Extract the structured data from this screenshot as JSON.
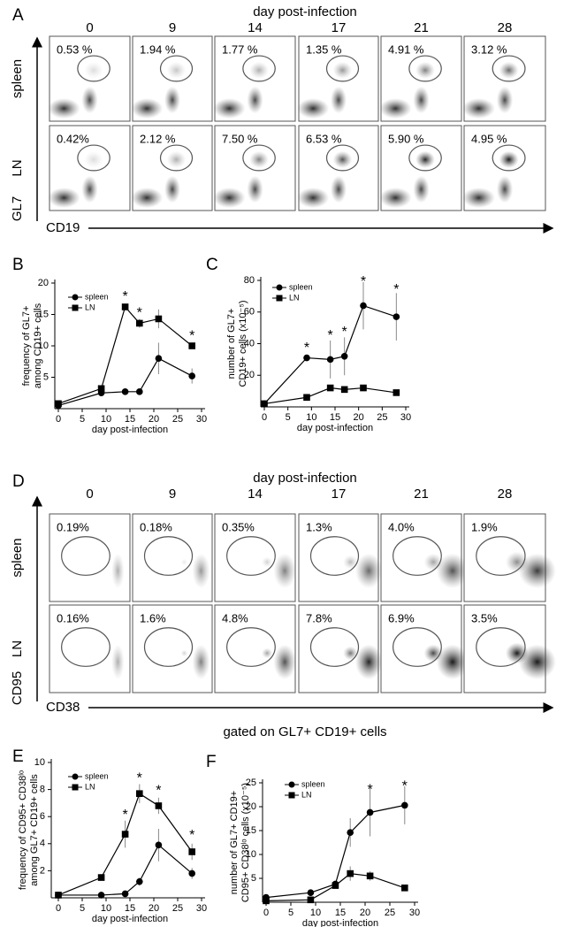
{
  "flow_A": {
    "panel": "A",
    "title": "day post-infection",
    "days": [
      "0",
      "9",
      "14",
      "17",
      "21",
      "28"
    ],
    "rows": [
      {
        "name": "spleen",
        "percents": [
          "0.53 %",
          "1.94 %",
          "1.77 %",
          "1.35 %",
          "4.91 %",
          "3.12 %"
        ]
      },
      {
        "name": "LN",
        "percents": [
          "0.42%",
          "2.12 %",
          "7.50 %",
          "6.53 %",
          "5.90 %",
          "4.95 %"
        ]
      }
    ],
    "y_axis": "GL7",
    "x_axis": "CD19"
  },
  "flow_D": {
    "panel": "D",
    "title": "day post-infection",
    "days": [
      "0",
      "9",
      "14",
      "17",
      "21",
      "28"
    ],
    "rows": [
      {
        "name": "spleen",
        "percents": [
          "0.19%",
          "0.18%",
          "0.35%",
          "1.3%",
          "4.0%",
          "1.9%"
        ]
      },
      {
        "name": "LN",
        "percents": [
          "0.16%",
          "1.6%",
          "4.8%",
          "7.8%",
          "6.9%",
          "3.5%"
        ]
      }
    ],
    "y_axis": "CD95",
    "x_axis": "CD38",
    "note": "gated on GL7+ CD19+ cells"
  },
  "chart_data": [
    {
      "panel": "B",
      "type": "line",
      "ylabel": [
        "frequency of GL7+",
        "among CD19+ cells"
      ],
      "xlabel": "day post-infection",
      "x": [
        0,
        9,
        14,
        17,
        21,
        28
      ],
      "xlim": [
        0,
        30
      ],
      "xticks": [
        0,
        5,
        10,
        15,
        20,
        25,
        30
      ],
      "ylim": [
        0,
        20
      ],
      "yticks": [
        5,
        10,
        15,
        20
      ],
      "series": [
        {
          "name": "spleen",
          "marker": "circle",
          "color": "#000000",
          "values": [
            0.5,
            2.5,
            2.7,
            2.7,
            8,
            5.2
          ],
          "errors": [
            0,
            0,
            0,
            0,
            2.5,
            1.2
          ]
        },
        {
          "name": "LN",
          "marker": "square",
          "color": "#000000",
          "values": [
            0.8,
            3.2,
            16.2,
            13.6,
            14.3,
            10
          ],
          "errors": [
            0,
            0,
            0,
            0.7,
            1.5,
            0.5
          ]
        }
      ],
      "annotations": [
        {
          "x": 14,
          "y": 17.8,
          "text": "*"
        },
        {
          "x": 17,
          "y": 15.2,
          "text": "*"
        },
        {
          "x": 28,
          "y": 11.5,
          "text": "*"
        }
      ]
    },
    {
      "panel": "C",
      "type": "line",
      "ylabel": [
        "number of  GL7+",
        "CD19+ cells (x10⁻⁵)"
      ],
      "xlabel": "day post-infection",
      "x": [
        0,
        9,
        14,
        17,
        21,
        28
      ],
      "xlim": [
        0,
        30
      ],
      "xticks": [
        0,
        5,
        10,
        15,
        20,
        25,
        30
      ],
      "ylim": [
        0,
        80
      ],
      "yticks": [
        20,
        40,
        60,
        80
      ],
      "series": [
        {
          "name": "spleen",
          "marker": "circle",
          "color": "#000000",
          "values": [
            2,
            31,
            30,
            32,
            64,
            57
          ],
          "errors": [
            0,
            1,
            12,
            12,
            15,
            15
          ]
        },
        {
          "name": "LN",
          "marker": "square",
          "color": "#000000",
          "values": [
            2,
            6,
            12,
            11,
            12,
            9
          ],
          "errors": [
            0,
            0,
            1,
            0,
            0,
            1
          ]
        }
      ],
      "annotations": [
        {
          "x": 9,
          "y": 37,
          "text": "*"
        },
        {
          "x": 14,
          "y": 45,
          "text": "*"
        },
        {
          "x": 17,
          "y": 47,
          "text": "*"
        },
        {
          "x": 21,
          "y": 79,
          "text": "*"
        },
        {
          "x": 28,
          "y": 74,
          "text": "*"
        }
      ]
    },
    {
      "panel": "E",
      "type": "line",
      "ylabel": [
        "frequency of CD95+ CD38ˡᵒ",
        "among GL7+ CD19+ cells"
      ],
      "xlabel": "day post-infection",
      "x": [
        0,
        9,
        14,
        17,
        21,
        28
      ],
      "xlim": [
        0,
        30
      ],
      "xticks": [
        0,
        5,
        10,
        15,
        20,
        25,
        30
      ],
      "ylim": [
        0,
        10
      ],
      "yticks": [
        2,
        4,
        6,
        8,
        10
      ],
      "series": [
        {
          "name": "spleen",
          "marker": "circle",
          "color": "#000000",
          "values": [
            0.2,
            0.2,
            0.3,
            1.2,
            3.9,
            1.8
          ],
          "errors": [
            0,
            0,
            0,
            0.3,
            1.2,
            0.4
          ]
        },
        {
          "name": "LN",
          "marker": "square",
          "color": "#000000",
          "values": [
            0.2,
            1.5,
            4.7,
            7.7,
            6.8,
            3.4
          ],
          "errors": [
            0,
            0,
            1,
            0.7,
            0.6,
            0.6
          ]
        }
      ],
      "annotations": [
        {
          "x": 14,
          "y": 6.1,
          "text": "*"
        },
        {
          "x": 17,
          "y": 8.8,
          "text": "*"
        },
        {
          "x": 21,
          "y": 7.9,
          "text": "*"
        },
        {
          "x": 28,
          "y": 4.6,
          "text": "*"
        }
      ]
    },
    {
      "panel": "F",
      "type": "line",
      "ylabel": [
        "number of  GL7+ CD19+",
        "CD95+ CD38ˡᵒ cells (x10⁻⁵)"
      ],
      "xlabel": "day post-infection",
      "x": [
        0,
        9,
        14,
        17,
        21,
        28
      ],
      "xlim": [
        0,
        30
      ],
      "xticks": [
        0,
        5,
        10,
        15,
        20,
        25,
        30
      ],
      "ylim": [
        0,
        25
      ],
      "yticks": [
        5,
        10,
        15,
        20,
        25
      ],
      "series": [
        {
          "name": "spleen",
          "marker": "circle",
          "color": "#000000",
          "values": [
            1,
            2,
            3.8,
            14.6,
            18.8,
            20.3
          ],
          "errors": [
            0.5,
            0,
            0.5,
            3,
            5,
            4
          ]
        },
        {
          "name": "LN",
          "marker": "square",
          "color": "#000000",
          "values": [
            0.3,
            0.5,
            3.5,
            6,
            5.5,
            3
          ],
          "errors": [
            0,
            0,
            0,
            1.5,
            1,
            0
          ]
        }
      ],
      "annotations": [
        {
          "x": 21,
          "y": 23.5,
          "text": "*"
        },
        {
          "x": 28,
          "y": 24.2,
          "text": "*"
        }
      ]
    }
  ]
}
